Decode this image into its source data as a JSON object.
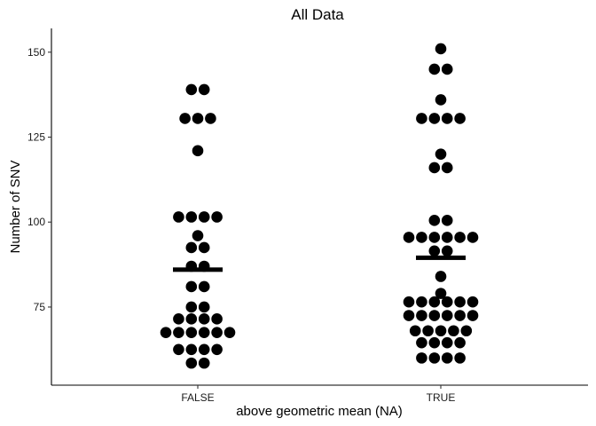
{
  "chart_data": {
    "type": "scatter",
    "subtype": "dotplot",
    "title": "All Data",
    "xlabel": "above geometric mean (NA)",
    "ylabel": "Number of SNV",
    "categories": [
      "FALSE",
      "TRUE"
    ],
    "ylim": [
      52,
      157
    ],
    "yticks": [
      75,
      100,
      125,
      150
    ],
    "grid": false,
    "legend": "none",
    "groups": [
      {
        "category": "FALSE",
        "mean": 86,
        "rows": [
          {
            "value": 139,
            "count": 2
          },
          {
            "value": 130.5,
            "count": 3
          },
          {
            "value": 121,
            "count": 1
          },
          {
            "value": 101.5,
            "count": 4
          },
          {
            "value": 96,
            "count": 1
          },
          {
            "value": 92.5,
            "count": 2
          },
          {
            "value": 87,
            "count": 2
          },
          {
            "value": 81,
            "count": 2
          },
          {
            "value": 75,
            "count": 2
          },
          {
            "value": 71.5,
            "count": 4
          },
          {
            "value": 67.5,
            "count": 6
          },
          {
            "value": 62.5,
            "count": 4
          },
          {
            "value": 58.5,
            "count": 2
          }
        ]
      },
      {
        "category": "TRUE",
        "mean": 89.5,
        "rows": [
          {
            "value": 151,
            "count": 1
          },
          {
            "value": 145,
            "count": 2
          },
          {
            "value": 136,
            "count": 1
          },
          {
            "value": 130.5,
            "count": 4
          },
          {
            "value": 120,
            "count": 1
          },
          {
            "value": 116,
            "count": 2
          },
          {
            "value": 100.5,
            "count": 2
          },
          {
            "value": 95.5,
            "count": 6
          },
          {
            "value": 91.5,
            "count": 2
          },
          {
            "value": 84,
            "count": 1
          },
          {
            "value": 79,
            "count": 1
          },
          {
            "value": 76.5,
            "count": 6
          },
          {
            "value": 72.5,
            "count": 6
          },
          {
            "value": 68,
            "count": 5
          },
          {
            "value": 64.5,
            "count": 4
          },
          {
            "value": 60,
            "count": 4
          }
        ]
      }
    ]
  }
}
